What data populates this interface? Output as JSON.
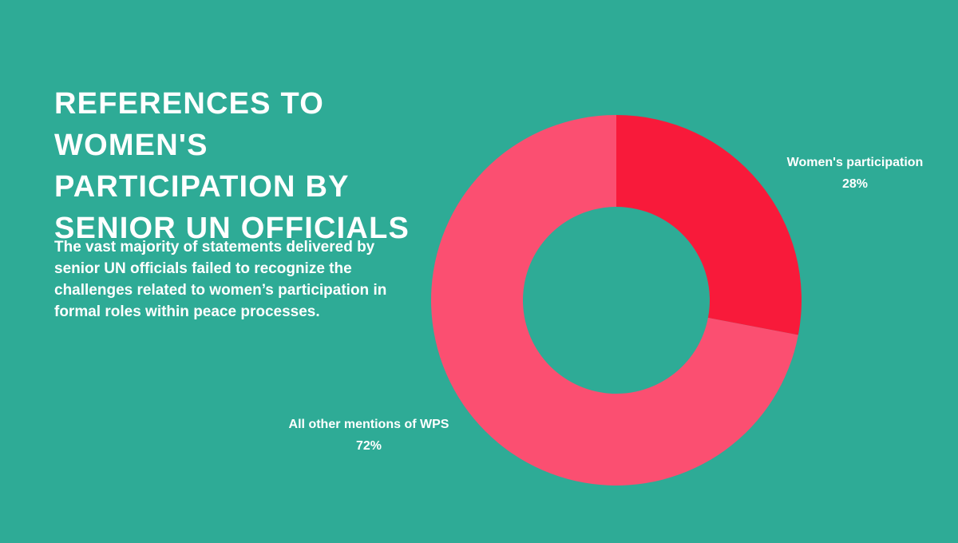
{
  "header": {
    "title": "REFERENCES TO WOMEN'S PARTICIPATION BY SENIOR UN OFFICIALS"
  },
  "description": {
    "text": "The vast majority of statements delivered by senior UN officials failed to recognize the challenges related to women’s participation in formal roles within peace processes."
  },
  "chart_data": {
    "type": "pie",
    "donut": true,
    "categories": [
      "Women's participation",
      "All other mentions of WPS"
    ],
    "values": [
      28,
      72
    ],
    "value_labels": [
      "28%",
      "72%"
    ],
    "colors": [
      "#f81a3a",
      "#fb4f71"
    ],
    "background_color": "#2eab96",
    "title": "REFERENCES TO WOMEN'S PARTICIPATION BY SENIOR UN OFFICIALS",
    "legend": "none"
  }
}
